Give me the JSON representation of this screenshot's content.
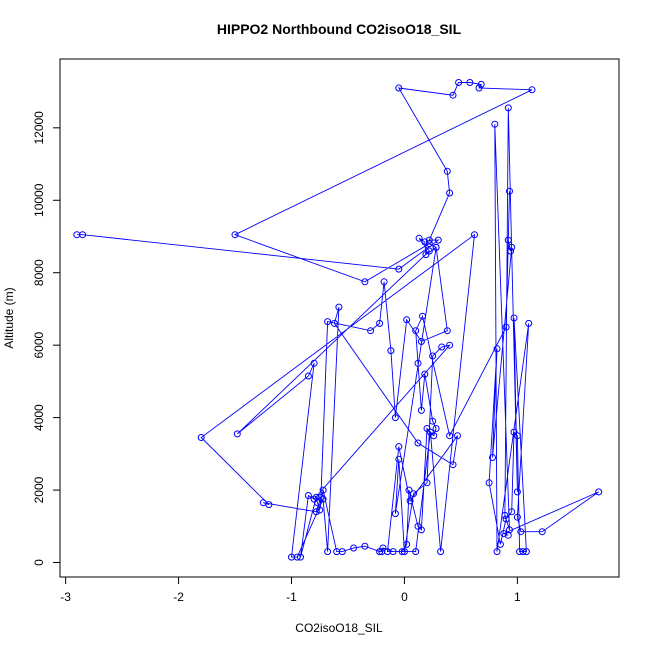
{
  "chart_data": {
    "type": "line",
    "title": "HIPPO2 Northbound CO2isoO18_SIL",
    "xlabel": "CO2isoO18_SIL",
    "ylabel": "Altitude (m)",
    "xlim": [
      -3.05,
      1.9
    ],
    "ylim": [
      -400,
      13900
    ],
    "x_ticks": [
      -3,
      -2,
      -1,
      0,
      1
    ],
    "y_ticks": [
      0,
      2000,
      4000,
      6000,
      8000,
      10000,
      12000
    ],
    "x_tick_labels": [
      "-3",
      "-2",
      "-1",
      "0",
      "1"
    ],
    "y_tick_labels": [
      "0",
      "2000",
      "4000",
      "6000",
      "8000",
      "10000",
      "12000"
    ],
    "grid": false,
    "legend": "none",
    "line_color": "#0000ff",
    "marker": "open-circle",
    "x": [
      -2.9,
      -2.85,
      -0.05,
      0.3,
      0.22,
      0.4,
      0.38,
      -0.05,
      0.43,
      0.48,
      0.58,
      0.68,
      0.66,
      1.13,
      -1.5,
      -0.35,
      0.22,
      0.28,
      0.19,
      0.18,
      0.13,
      0.22,
      -1.48,
      -0.85,
      -0.8,
      -1.0,
      -0.95,
      -0.72,
      -0.68,
      -0.58,
      -0.62,
      0.12,
      0.43,
      0.47,
      0.05,
      -0.05,
      -0.15,
      0.1,
      0.23,
      0.32,
      0.62,
      -1.8,
      -1.2,
      -1.25,
      -0.78,
      -0.74,
      -0.68,
      -0.3,
      -0.22,
      -0.18,
      -0.12,
      -0.08,
      0.02,
      0.15,
      0.38,
      0.28,
      -0.08,
      -0.05,
      0.0,
      0.08,
      0.2,
      0.25,
      0.33,
      0.4,
      -0.8,
      -0.85,
      -0.92,
      -0.78,
      -0.77,
      -0.75,
      -0.72,
      -0.6,
      -0.55,
      -0.45,
      -0.35,
      -0.22,
      -0.2,
      -0.19,
      -0.1,
      -0.02,
      0.02,
      0.04,
      0.12,
      0.15,
      0.2,
      0.26,
      0.28,
      0.25,
      0.18,
      0.15,
      0.12,
      0.1,
      0.16,
      0.4,
      0.9,
      0.93,
      0.92,
      0.94,
      0.95,
      0.78,
      0.82,
      0.75,
      0.85,
      0.9,
      0.95,
      0.97,
      1.0,
      1.02,
      1.05,
      1.08,
      0.97,
      1.0,
      0.92,
      0.89,
      0.93,
      0.8,
      0.82,
      1.1,
      1.0,
      1.03,
      1.22,
      1.72,
      0.88,
      0.92
    ],
    "y": [
      9050,
      9050,
      8100,
      8900,
      8900,
      10200,
      10800,
      13100,
      12900,
      13250,
      13250,
      13200,
      13100,
      13050,
      9050,
      7750,
      8800,
      8700,
      8500,
      8850,
      8950,
      8600,
      3550,
      5150,
      5500,
      150,
      150,
      1750,
      300,
      7050,
      6600,
      3300,
      2700,
      3500,
      1700,
      3200,
      300,
      300,
      3600,
      300,
      9050,
      3450,
      1600,
      1650,
      1400,
      1800,
      6650,
      6400,
      6600,
      7750,
      5850,
      4000,
      6700,
      6100,
      6400,
      8700,
      1350,
      2850,
      300,
      1900,
      2200,
      5700,
      5950,
      6000,
      1750,
      1850,
      150,
      1800,
      1650,
      1450,
      2000,
      300,
      300,
      400,
      450,
      300,
      300,
      400,
      300,
      300,
      500,
      2000,
      1000,
      900,
      3700,
      3500,
      3700,
      3900,
      5200,
      4200,
      5500,
      6400,
      6800,
      3500,
      6500,
      10250,
      8900,
      8600,
      8700,
      2900,
      5900,
      2200,
      500,
      1200,
      1400,
      3600,
      3500,
      300,
      300,
      300,
      6750,
      1950,
      12550,
      1300,
      900,
      12100,
      300,
      6600,
      1250,
      850,
      850,
      1950,
      800,
      750
    ]
  }
}
